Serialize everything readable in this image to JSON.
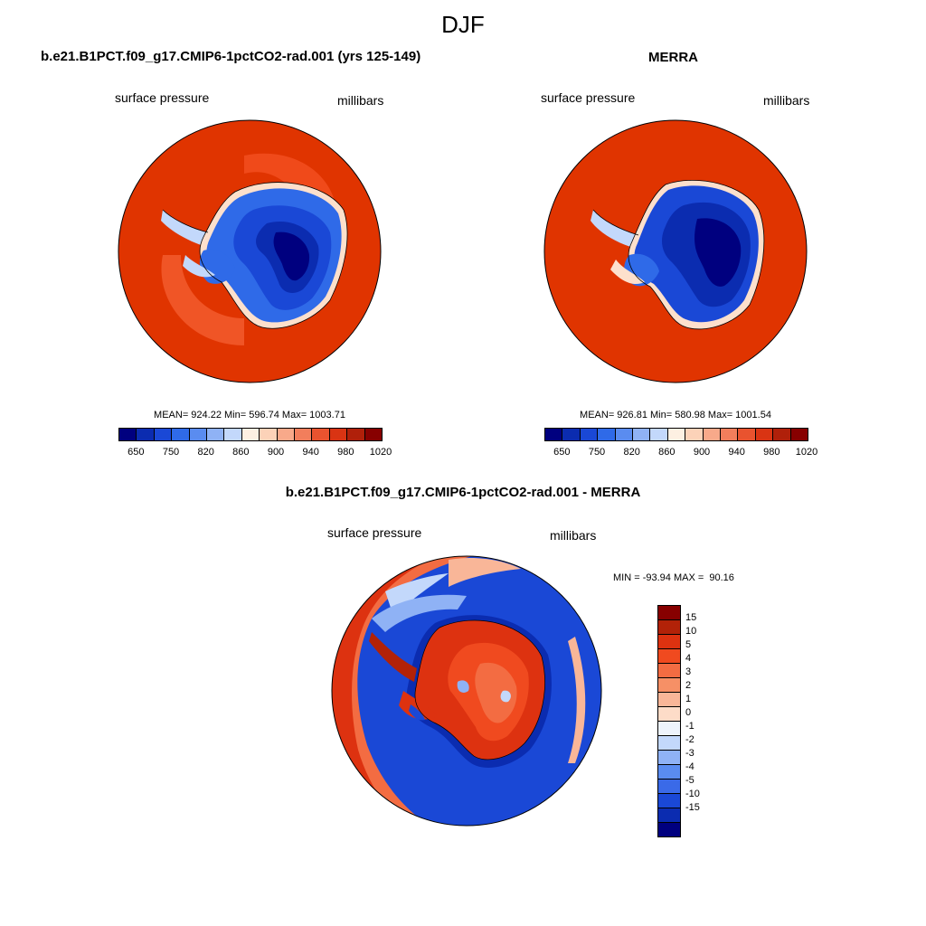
{
  "title": "DJF",
  "left_panel": {
    "title": "b.e21.B1PCT.f09_g17.CMIP6-1pctCO2-rad.001 (yrs 125-149)",
    "variable": "surface pressure",
    "units": "millibars",
    "stats": "MEAN= 924.22  Min= 596.74  Max= 1003.71"
  },
  "right_panel": {
    "title": "MERRA",
    "variable": "surface pressure",
    "units": "millibars",
    "stats": "MEAN= 926.81  Min= 580.98  Max= 1001.54"
  },
  "diff_panel": {
    "title": "b.e21.B1PCT.f09_g17.CMIP6-1pctCO2-rad.001 - MERRA",
    "variable": "surface pressure",
    "units": "millibars",
    "stats": "MIN = -93.94 MAX =  90.16"
  },
  "colorbar_top": {
    "colors": [
      "#00007f",
      "#0b2cb0",
      "#1a48d6",
      "#2f6ae8",
      "#5a8cf0",
      "#8fb2f5",
      "#c3d8fb",
      "#fdf0e2",
      "#fcd2b8",
      "#f8a98a",
      "#f27e5c",
      "#e9532f",
      "#d93413",
      "#b0200a",
      "#870000"
    ],
    "labels": [
      "650",
      "750",
      "820",
      "860",
      "900",
      "940",
      "980",
      "1020"
    ]
  },
  "colorbar_diff": {
    "colors": [
      "#870000",
      "#b22208",
      "#dd3210",
      "#f04a1f",
      "#f36c42",
      "#f69066",
      "#f9b698",
      "#fddcc8",
      "#eef3fb",
      "#c3d8fb",
      "#8fb2f5",
      "#5a8cf0",
      "#3a6ae8",
      "#1a48d6",
      "#0b2cb0",
      "#00007f"
    ],
    "labels": [
      "15",
      "10",
      "5",
      "4",
      "3",
      "2",
      "1",
      "0",
      "-1",
      "-2",
      "-3",
      "-4",
      "-5",
      "-10",
      "-15"
    ]
  }
}
